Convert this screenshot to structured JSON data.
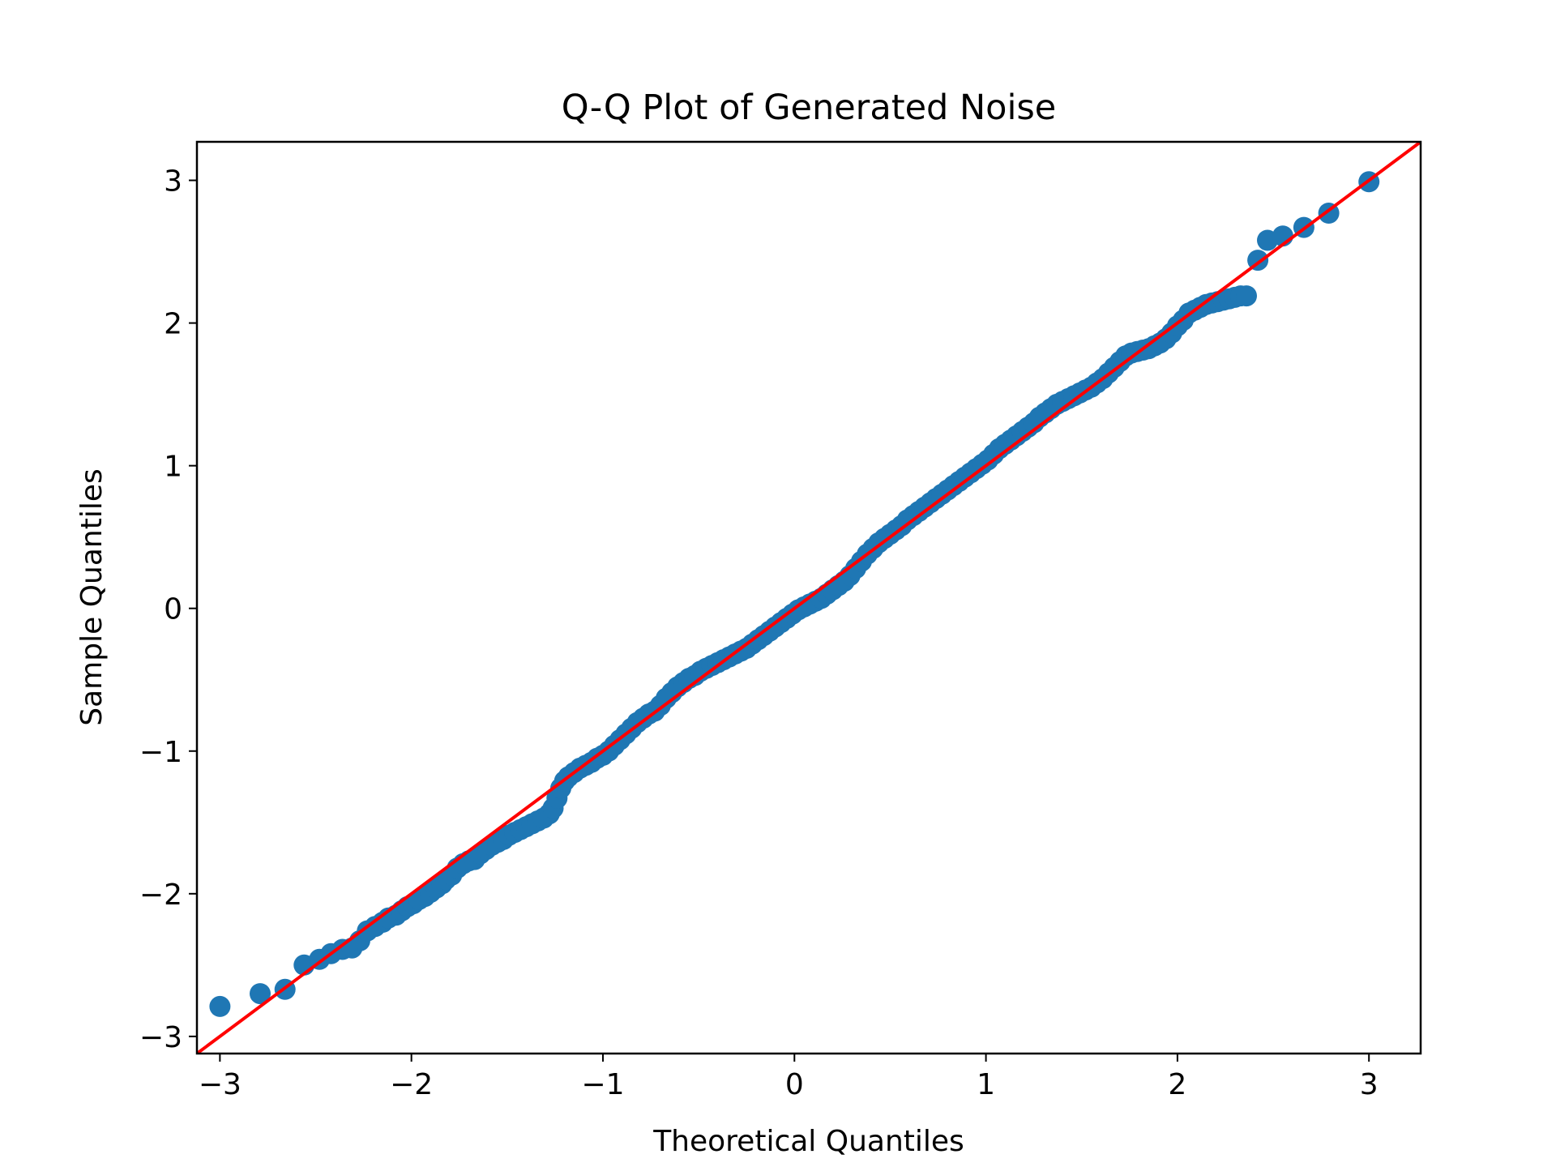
{
  "chart_data": {
    "type": "scatter",
    "title": "Q-Q Plot of Generated Noise",
    "xlabel": "Theoretical Quantiles",
    "ylabel": "Sample Quantiles",
    "xlim": [
      -3.12,
      3.27
    ],
    "ylim": [
      -3.12,
      3.27
    ],
    "x_ticks": [
      -3,
      -2,
      -1,
      0,
      1,
      2,
      3
    ],
    "y_ticks": [
      -3,
      -2,
      -1,
      0,
      1,
      2,
      3
    ],
    "x_tick_labels": [
      "−3",
      "−2",
      "−1",
      "0",
      "1",
      "2",
      "3"
    ],
    "y_tick_labels": [
      "−3",
      "−2",
      "−1",
      "0",
      "1",
      "2",
      "3"
    ],
    "grid": false,
    "marker_color": "#1f77b4",
    "reference_line_color": "#ff0000",
    "reference_line": {
      "slope": 1,
      "intercept": 0
    },
    "points": [
      [
        -3.0,
        -2.79
      ],
      [
        -2.79,
        -2.7
      ],
      [
        -2.66,
        -2.67
      ],
      [
        -2.56,
        -2.5
      ],
      [
        -2.48,
        -2.46
      ],
      [
        -2.42,
        -2.42
      ],
      [
        -2.36,
        -2.39
      ],
      [
        -2.31,
        -2.38
      ],
      [
        -2.27,
        -2.33
      ],
      [
        -2.23,
        -2.26
      ],
      [
        -2.19,
        -2.23
      ],
      [
        -2.15,
        -2.2
      ],
      [
        -2.12,
        -2.17
      ],
      [
        -2.08,
        -2.15
      ],
      [
        -2.05,
        -2.12
      ],
      [
        -2.02,
        -2.09
      ],
      [
        -1.99,
        -2.07
      ],
      [
        -1.96,
        -2.04
      ],
      [
        -1.93,
        -2.02
      ],
      [
        -1.9,
        -1.99
      ],
      [
        -1.87,
        -1.96
      ],
      [
        -1.84,
        -1.93
      ],
      [
        -1.82,
        -1.9
      ],
      [
        -1.79,
        -1.87
      ],
      [
        -1.76,
        -1.82
      ],
      [
        -1.73,
        -1.79
      ],
      [
        -1.7,
        -1.77
      ],
      [
        -1.67,
        -1.76
      ],
      [
        -1.64,
        -1.72
      ],
      [
        -1.61,
        -1.69
      ],
      [
        -1.58,
        -1.66
      ],
      [
        -1.55,
        -1.64
      ],
      [
        -1.52,
        -1.62
      ],
      [
        -1.49,
        -1.59
      ],
      [
        -1.46,
        -1.57
      ],
      [
        -1.43,
        -1.55
      ],
      [
        -1.4,
        -1.53
      ],
      [
        -1.37,
        -1.51
      ],
      [
        -1.34,
        -1.49
      ],
      [
        -1.31,
        -1.47
      ],
      [
        -1.28,
        -1.44
      ],
      [
        -1.26,
        -1.4
      ],
      [
        -1.24,
        -1.33
      ],
      [
        -1.22,
        -1.26
      ],
      [
        -1.2,
        -1.21
      ],
      [
        -1.18,
        -1.18
      ],
      [
        -1.15,
        -1.15
      ],
      [
        -1.12,
        -1.12
      ],
      [
        -1.09,
        -1.1
      ],
      [
        -1.06,
        -1.08
      ],
      [
        -1.03,
        -1.05
      ],
      [
        -1.0,
        -1.03
      ],
      [
        -0.97,
        -1.0
      ],
      [
        -0.94,
        -0.96
      ],
      [
        -0.91,
        -0.92
      ],
      [
        -0.88,
        -0.88
      ],
      [
        -0.85,
        -0.84
      ],
      [
        -0.82,
        -0.8
      ],
      [
        -0.79,
        -0.77
      ],
      [
        -0.76,
        -0.74
      ],
      [
        -0.73,
        -0.72
      ],
      [
        -0.7,
        -0.68
      ],
      [
        -0.67,
        -0.63
      ],
      [
        -0.64,
        -0.59
      ],
      [
        -0.61,
        -0.55
      ],
      [
        -0.58,
        -0.52
      ],
      [
        -0.55,
        -0.49
      ],
      [
        -0.52,
        -0.47
      ],
      [
        -0.49,
        -0.44
      ],
      [
        -0.46,
        -0.42
      ],
      [
        -0.43,
        -0.4
      ],
      [
        -0.4,
        -0.38
      ],
      [
        -0.37,
        -0.36
      ],
      [
        -0.34,
        -0.34
      ],
      [
        -0.31,
        -0.32
      ],
      [
        -0.28,
        -0.3
      ],
      [
        -0.25,
        -0.28
      ],
      [
        -0.22,
        -0.25
      ],
      [
        -0.19,
        -0.22
      ],
      [
        -0.16,
        -0.19
      ],
      [
        -0.13,
        -0.16
      ],
      [
        -0.1,
        -0.13
      ],
      [
        -0.07,
        -0.1
      ],
      [
        -0.04,
        -0.07
      ],
      [
        -0.01,
        -0.04
      ],
      [
        0.02,
        -0.01
      ],
      [
        0.05,
        0.01
      ],
      [
        0.08,
        0.03
      ],
      [
        0.11,
        0.05
      ],
      [
        0.14,
        0.07
      ],
      [
        0.17,
        0.1
      ],
      [
        0.2,
        0.13
      ],
      [
        0.23,
        0.16
      ],
      [
        0.26,
        0.19
      ],
      [
        0.29,
        0.23
      ],
      [
        0.32,
        0.28
      ],
      [
        0.35,
        0.33
      ],
      [
        0.38,
        0.38
      ],
      [
        0.41,
        0.42
      ],
      [
        0.44,
        0.46
      ],
      [
        0.47,
        0.49
      ],
      [
        0.5,
        0.52
      ],
      [
        0.53,
        0.55
      ],
      [
        0.56,
        0.58
      ],
      [
        0.59,
        0.62
      ],
      [
        0.62,
        0.65
      ],
      [
        0.65,
        0.68
      ],
      [
        0.68,
        0.71
      ],
      [
        0.71,
        0.74
      ],
      [
        0.74,
        0.77
      ],
      [
        0.77,
        0.8
      ],
      [
        0.8,
        0.83
      ],
      [
        0.83,
        0.86
      ],
      [
        0.86,
        0.89
      ],
      [
        0.89,
        0.92
      ],
      [
        0.92,
        0.95
      ],
      [
        0.95,
        0.98
      ],
      [
        0.98,
        1.01
      ],
      [
        1.01,
        1.04
      ],
      [
        1.04,
        1.08
      ],
      [
        1.07,
        1.12
      ],
      [
        1.1,
        1.15
      ],
      [
        1.13,
        1.18
      ],
      [
        1.16,
        1.21
      ],
      [
        1.19,
        1.24
      ],
      [
        1.22,
        1.27
      ],
      [
        1.25,
        1.3
      ],
      [
        1.28,
        1.34
      ],
      [
        1.31,
        1.37
      ],
      [
        1.34,
        1.4
      ],
      [
        1.37,
        1.43
      ],
      [
        1.4,
        1.45
      ],
      [
        1.43,
        1.47
      ],
      [
        1.46,
        1.49
      ],
      [
        1.49,
        1.51
      ],
      [
        1.52,
        1.53
      ],
      [
        1.55,
        1.55
      ],
      [
        1.58,
        1.58
      ],
      [
        1.61,
        1.61
      ],
      [
        1.64,
        1.65
      ],
      [
        1.67,
        1.69
      ],
      [
        1.7,
        1.73
      ],
      [
        1.73,
        1.77
      ],
      [
        1.76,
        1.79
      ],
      [
        1.79,
        1.8
      ],
      [
        1.82,
        1.81
      ],
      [
        1.85,
        1.82
      ],
      [
        1.88,
        1.84
      ],
      [
        1.91,
        1.86
      ],
      [
        1.94,
        1.89
      ],
      [
        1.97,
        1.93
      ],
      [
        2.0,
        1.98
      ],
      [
        2.03,
        2.02
      ],
      [
        2.06,
        2.07
      ],
      [
        2.09,
        2.09
      ],
      [
        2.12,
        2.11
      ],
      [
        2.15,
        2.13
      ],
      [
        2.18,
        2.14
      ],
      [
        2.21,
        2.15
      ],
      [
        2.24,
        2.16
      ],
      [
        2.27,
        2.17
      ],
      [
        2.3,
        2.18
      ],
      [
        2.33,
        2.19
      ],
      [
        2.36,
        2.19
      ],
      [
        2.42,
        2.44
      ],
      [
        2.47,
        2.58
      ],
      [
        2.55,
        2.61
      ],
      [
        2.66,
        2.67
      ],
      [
        2.79,
        2.77
      ],
      [
        3.0,
        2.99
      ]
    ]
  }
}
